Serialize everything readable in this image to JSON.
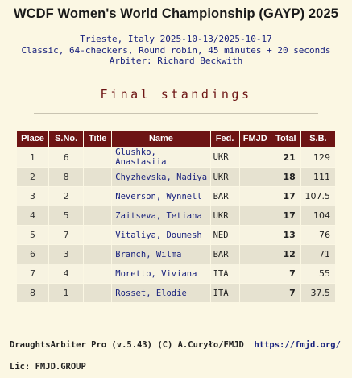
{
  "title": "WCDF Women's World Championship (GAYP) 2025",
  "info": {
    "line1": "Trieste, Italy 2025-10-13/2025-10-17",
    "line2": "Classic, 64-checkers, Round robin, 45 minutes + 20 seconds",
    "line3": "Arbiter: Richard Beckwith"
  },
  "subtitle": "Final standings",
  "table": {
    "headers": [
      "Place",
      "S.No.",
      "Title",
      "Name",
      "Fed.",
      "FMJD",
      "Total",
      "S.B."
    ],
    "rows": [
      {
        "place": "1",
        "sno": "6",
        "title": "",
        "name": "Glushko, Anastasiia",
        "fed": "UKR",
        "fmjd": "",
        "total": "21",
        "sb": "129"
      },
      {
        "place": "2",
        "sno": "8",
        "title": "",
        "name": "Chyzhevska, Nadiya",
        "fed": "UKR",
        "fmjd": "",
        "total": "18",
        "sb": "111"
      },
      {
        "place": "3",
        "sno": "2",
        "title": "",
        "name": "Neverson, Wynnell",
        "fed": "BAR",
        "fmjd": "",
        "total": "17",
        "sb": "107.5"
      },
      {
        "place": "4",
        "sno": "5",
        "title": "",
        "name": "Zaitseva, Tetiana",
        "fed": "UKR",
        "fmjd": "",
        "total": "17",
        "sb": "104"
      },
      {
        "place": "5",
        "sno": "7",
        "title": "",
        "name": "Vitaliya, Doumesh",
        "fed": "NED",
        "fmjd": "",
        "total": "13",
        "sb": "76"
      },
      {
        "place": "6",
        "sno": "3",
        "title": "",
        "name": "Branch, Wilma",
        "fed": "BAR",
        "fmjd": "",
        "total": "12",
        "sb": "71"
      },
      {
        "place": "7",
        "sno": "4",
        "title": "",
        "name": "Moretto, Viviana",
        "fed": "ITA",
        "fmjd": "",
        "total": "7",
        "sb": "55"
      },
      {
        "place": "8",
        "sno": "1",
        "title": "",
        "name": "Rosset, Elodie",
        "fed": "ITA",
        "fmjd": "",
        "total": "7",
        "sb": "37.5"
      }
    ]
  },
  "footer": {
    "software": "DraughtsArbiter Pro (v.5.43) (C) A.Curyło/FMJD",
    "link": "https://fmjd.org/",
    "license": "Lic: FMJD.GROUP"
  },
  "colors": {
    "header_bg": "#6d1414",
    "background": "#fbf7e3",
    "name_text": "#1a237e"
  }
}
